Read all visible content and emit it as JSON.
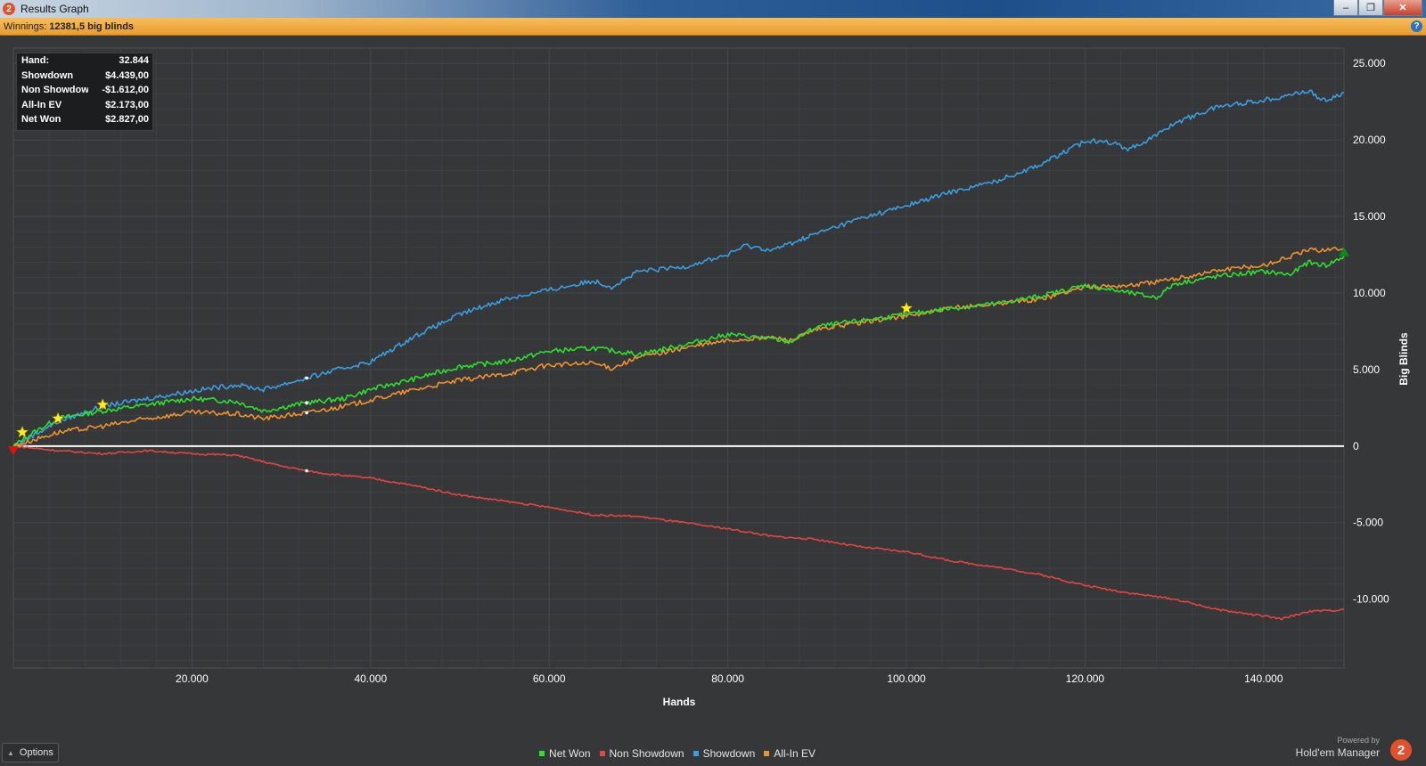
{
  "window": {
    "title": "Results Graph",
    "app_icon_label": "2",
    "controls": {
      "minimize": "–",
      "maximize": "❐",
      "close": "✕"
    }
  },
  "winnings": {
    "label": "Winnings:",
    "value": "12381,5 big blinds"
  },
  "info_box": {
    "rows": [
      {
        "key": "Hand:",
        "value": "32.844"
      },
      {
        "key": "Showdown",
        "value": "$4.439,00"
      },
      {
        "key": "Non Showdown",
        "value": "-$1.612,00"
      },
      {
        "key": "All-In EV",
        "value": "$2.173,00"
      },
      {
        "key": "Net Won",
        "value": "$2.827,00"
      }
    ]
  },
  "colors": {
    "net_won": "#2ee02e",
    "non_showdown": "#e34545",
    "showdown": "#3a9ee0",
    "all_in_ev": "#f0922e",
    "grid": "#45484b",
    "zero_line": "#ffffff",
    "marker": "#ffec1a"
  },
  "chart_data": {
    "type": "line",
    "xlabel": "Hands",
    "ylabel": "Big Blinds",
    "xlim": [
      0,
      149000
    ],
    "ylim": [
      -14500,
      26000
    ],
    "x_ticks": [
      20000,
      40000,
      60000,
      80000,
      100000,
      120000,
      140000
    ],
    "x_tick_labels": [
      "20.000",
      "40.000",
      "60.000",
      "80.000",
      "100.000",
      "120.000",
      "140.000"
    ],
    "y_ticks": [
      25000,
      20000,
      15000,
      10000,
      5000,
      0,
      -5000,
      -10000
    ],
    "y_tick_labels": [
      "25.000",
      "20.000",
      "15.000",
      "10.000",
      "5.000",
      "0",
      "-5.000",
      "-10.000"
    ],
    "grid": true,
    "legend_position": "bottom-center",
    "cursor_x": 32844,
    "series": [
      {
        "name": "Net Won",
        "color": "#2ee02e",
        "x": [
          0,
          2000,
          5000,
          10000,
          15000,
          20000,
          25000,
          28000,
          32844,
          37000,
          40000,
          45000,
          50000,
          55000,
          60000,
          65000,
          70000,
          75000,
          80000,
          85000,
          87000,
          90000,
          95000,
          100000,
          105000,
          110000,
          115000,
          120000,
          125000,
          128000,
          130000,
          135000,
          140000,
          143000,
          145000,
          147000,
          149000
        ],
        "y": [
          0,
          800,
          1800,
          2300,
          2700,
          3100,
          2900,
          2300,
          2827,
          3100,
          3700,
          4400,
          5200,
          5500,
          6200,
          6400,
          6000,
          6600,
          7300,
          7000,
          6800,
          7800,
          8200,
          8600,
          9000,
          9300,
          9800,
          10500,
          10000,
          9700,
          10600,
          11100,
          11400,
          11200,
          12000,
          11800,
          12381
        ]
      },
      {
        "name": "Non Showdown",
        "color": "#e34545",
        "x": [
          0,
          5000,
          10000,
          15000,
          20000,
          25000,
          30000,
          32844,
          35000,
          40000,
          45000,
          50000,
          55000,
          60000,
          65000,
          70000,
          75000,
          80000,
          85000,
          90000,
          95000,
          100000,
          105000,
          110000,
          115000,
          120000,
          125000,
          130000,
          135000,
          140000,
          142000,
          145000,
          149000
        ],
        "y": [
          0,
          -300,
          -500,
          -300,
          -500,
          -600,
          -1300,
          -1612,
          -1800,
          -2100,
          -2600,
          -3200,
          -3600,
          -4000,
          -4500,
          -4600,
          -5000,
          -5400,
          -5900,
          -6100,
          -6600,
          -6900,
          -7500,
          -7900,
          -8400,
          -9100,
          -9600,
          -10000,
          -10700,
          -11100,
          -11300,
          -10800,
          -10700
        ]
      },
      {
        "name": "Showdown",
        "color": "#3a9ee0",
        "x": [
          0,
          5000,
          10000,
          15000,
          20000,
          25000,
          28000,
          32844,
          37000,
          40000,
          45000,
          50000,
          55000,
          60000,
          65000,
          67000,
          70000,
          75000,
          80000,
          82000,
          85000,
          90000,
          95000,
          100000,
          105000,
          110000,
          115000,
          120000,
          122000,
          125000,
          128000,
          130000,
          135000,
          140000,
          145000,
          147000,
          149000
        ],
        "y": [
          0,
          1600,
          2600,
          3100,
          3600,
          4000,
          3700,
          4439,
          5100,
          5500,
          7200,
          8600,
          9600,
          10200,
          10800,
          10400,
          11400,
          11700,
          12500,
          13100,
          12800,
          13900,
          14900,
          15700,
          16600,
          17300,
          18400,
          19900,
          20000,
          19400,
          20300,
          21100,
          22200,
          22600,
          23200,
          22500,
          23100
        ]
      },
      {
        "name": "All-In EV",
        "color": "#f0922e",
        "x": [
          0,
          5000,
          10000,
          15000,
          20000,
          25000,
          28000,
          32844,
          37000,
          40000,
          45000,
          50000,
          55000,
          60000,
          65000,
          67000,
          70000,
          75000,
          80000,
          85000,
          87000,
          90000,
          95000,
          100000,
          105000,
          110000,
          115000,
          120000,
          125000,
          130000,
          135000,
          140000,
          145000,
          149000
        ],
        "y": [
          0,
          900,
          1300,
          1800,
          2200,
          2100,
          1800,
          2173,
          2600,
          3000,
          3700,
          4300,
          4700,
          5300,
          5400,
          5100,
          5800,
          6400,
          6900,
          7100,
          6900,
          7600,
          8100,
          8500,
          9000,
          9300,
          9600,
          10400,
          10500,
          10900,
          11500,
          11800,
          12800,
          12900
        ]
      }
    ],
    "event_markers": [
      {
        "shape": "star",
        "x": 1000,
        "y": 900
      },
      {
        "shape": "star",
        "x": 5000,
        "y": 1800
      },
      {
        "shape": "star",
        "x": 10000,
        "y": 2700
      },
      {
        "shape": "star",
        "x": 100000,
        "y": 9000
      },
      {
        "shape": "triangle-down",
        "x": 0,
        "y": -300
      },
      {
        "shape": "triangle-up",
        "x": 149000,
        "y": 12700
      }
    ]
  },
  "legend": [
    {
      "name": "Net Won",
      "color": "#2ee02e"
    },
    {
      "name": "Non Showdown",
      "color": "#e34545"
    },
    {
      "name": "Showdown",
      "color": "#3a9ee0"
    },
    {
      "name": "All-In EV",
      "color": "#f0922e"
    }
  ],
  "options_button": {
    "label": "Options"
  },
  "branding": {
    "powered_by": "Powered by",
    "product": "Hold'em Manager",
    "logo": "2"
  }
}
